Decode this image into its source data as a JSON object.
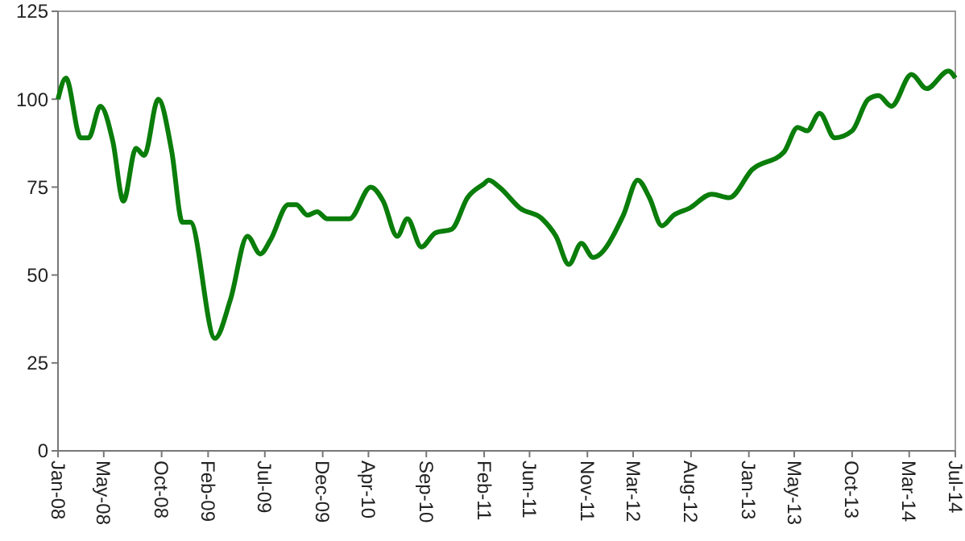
{
  "chart_data": {
    "type": "line",
    "grid": false,
    "marker": "none",
    "line_style": "solid",
    "x": [
      "2008-01-01",
      "2008-01-22",
      "2008-03-01",
      "2008-03-22",
      "2008-04-22",
      "2008-05-25",
      "2008-06-22",
      "2008-07-25",
      "2008-08-16",
      "2008-09-22",
      "2008-10-28",
      "2008-11-25",
      "2008-12-16",
      "2009-02-19",
      "2009-04-01",
      "2009-05-16",
      "2009-06-19",
      "2009-07-16",
      "2009-09-01",
      "2009-09-22",
      "2009-10-22",
      "2009-11-16",
      "2009-12-13",
      "2010-02-10",
      "2010-04-07",
      "2010-05-10",
      "2010-06-16",
      "2010-07-13",
      "2010-08-19",
      "2010-09-25",
      "2010-11-07",
      "2010-12-19",
      "2011-02-01",
      "2011-02-13",
      "2011-03-13",
      "2011-05-07",
      "2011-07-04",
      "2011-08-10",
      "2011-09-13",
      "2011-10-16",
      "2011-11-16",
      "2012-02-04",
      "2012-03-13",
      "2012-04-13",
      "2012-05-16",
      "2012-06-16",
      "2012-07-28",
      "2012-09-25",
      "2012-11-10",
      "2013-01-10",
      "2013-04-04",
      "2013-05-10",
      "2013-06-04",
      "2013-07-07",
      "2013-08-16",
      "2013-10-01",
      "2013-11-13",
      "2013-12-10",
      "2014-01-13",
      "2014-03-07",
      "2014-04-16",
      "2014-06-13",
      "2014-07-01"
    ],
    "series": [
      {
        "color": "#0a7d0a",
        "values": [
          100,
          106,
          89,
          89,
          98,
          88,
          71,
          86,
          84,
          100,
          85,
          65,
          65,
          32,
          43,
          61,
          56,
          60,
          70,
          70,
          67,
          68,
          66,
          66,
          75,
          71,
          61,
          66,
          58,
          62,
          63,
          72,
          76,
          77,
          75,
          69,
          66,
          61,
          53,
          59,
          55,
          67,
          77,
          72,
          64,
          67,
          69,
          73,
          72,
          80,
          85,
          92,
          91,
          96,
          89,
          91,
          100,
          101,
          98,
          107,
          103,
          108,
          106
        ]
      }
    ],
    "xlim": [
      "2008-01",
      "2014-07"
    ],
    "xticks": [
      {
        "value": "2008-01",
        "label": "Jan-08"
      },
      {
        "value": "2008-05",
        "label": "May-08"
      },
      {
        "value": "2008-10",
        "label": "Oct-08"
      },
      {
        "value": "2009-02",
        "label": "Feb-09"
      },
      {
        "value": "2009-07",
        "label": "Jul-09"
      },
      {
        "value": "2009-12",
        "label": "Dec-09"
      },
      {
        "value": "2010-04",
        "label": "Apr-10"
      },
      {
        "value": "2010-09",
        "label": "Sep-10"
      },
      {
        "value": "2011-02",
        "label": "Feb-11"
      },
      {
        "value": "2011-06",
        "label": "Jun-11"
      },
      {
        "value": "2011-11",
        "label": "Nov-11"
      },
      {
        "value": "2012-03",
        "label": "Mar-12"
      },
      {
        "value": "2012-08",
        "label": "Aug-12"
      },
      {
        "value": "2013-01",
        "label": "Jan-13"
      },
      {
        "value": "2013-05",
        "label": "May-13"
      },
      {
        "value": "2013-10",
        "label": "Oct-13"
      },
      {
        "value": "2014-03",
        "label": "Mar-14"
      },
      {
        "value": "2014-07",
        "label": "Jul-14"
      }
    ],
    "ylim": [
      0,
      125
    ],
    "yticks": [
      0,
      25,
      50,
      75,
      100,
      125
    ]
  }
}
